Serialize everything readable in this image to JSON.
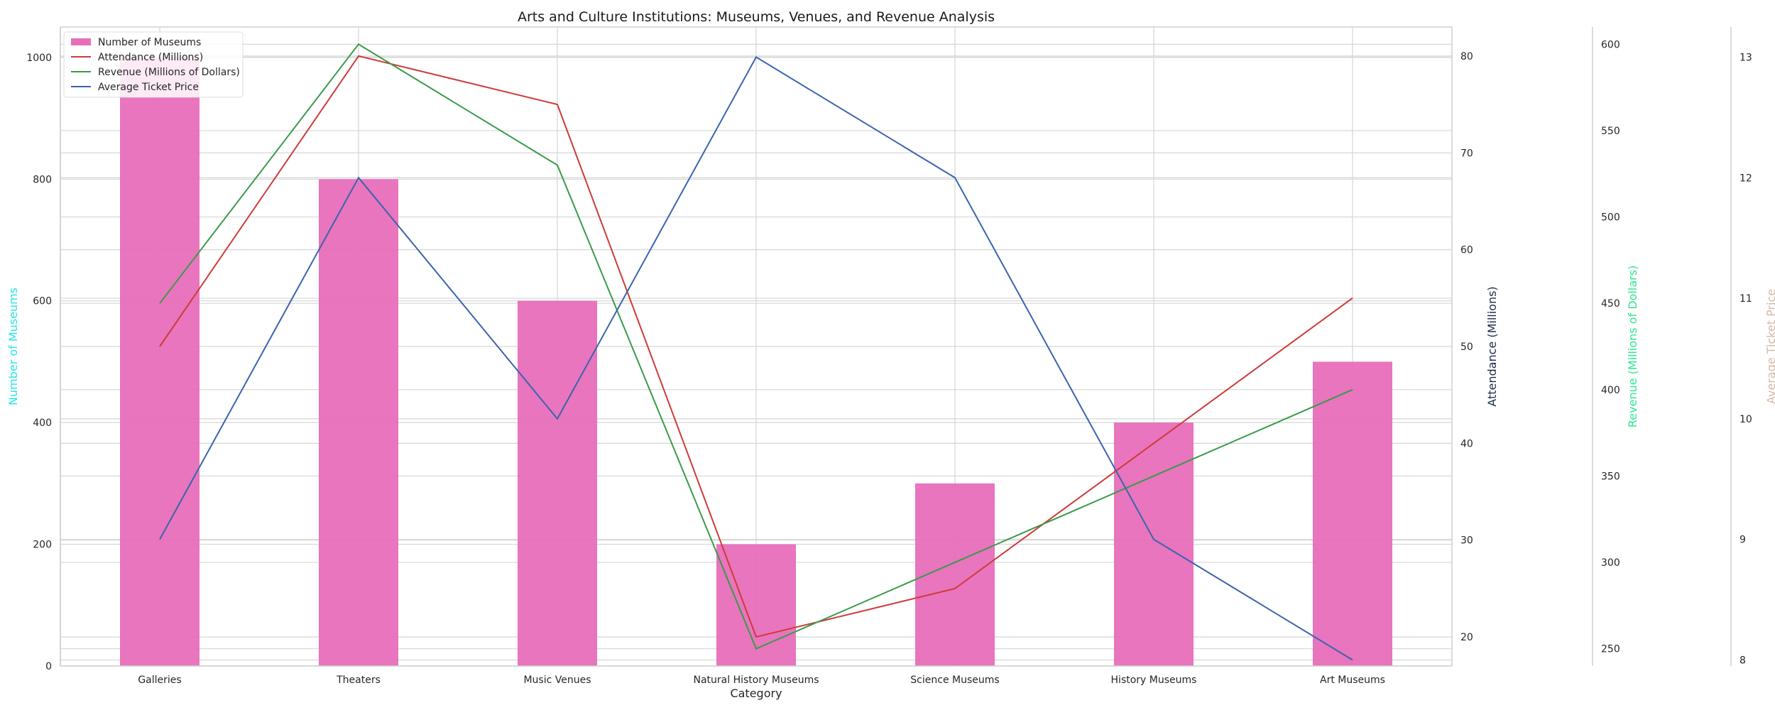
{
  "chart_data": {
    "type": "bar",
    "title": "Arts and Culture Institutions: Museums, Venues, and Revenue Analysis",
    "xlabel": "Category",
    "categories": [
      "Galleries",
      "Theaters",
      "Music Venues",
      "Natural History Museums",
      "Science Museums",
      "History Museums",
      "Art Museums"
    ],
    "grid": true,
    "legend_position": "top-left",
    "series": [
      {
        "name": "Number of Museums",
        "kind": "bar",
        "axis": "left",
        "color": "#e76eb9",
        "values": [
          1000,
          800,
          600,
          200,
          300,
          400,
          500
        ]
      },
      {
        "name": "Attendance (Millions)",
        "kind": "line",
        "axis": "attendance",
        "color": "#d03a3a",
        "values": [
          50,
          80,
          75,
          20,
          25,
          40,
          55
        ]
      },
      {
        "name": "Revenue (Millions of Dollars)",
        "kind": "line",
        "axis": "revenue",
        "color": "#3a9a4a",
        "values": [
          450,
          600,
          530,
          250,
          300,
          350,
          400
        ]
      },
      {
        "name": "Average Ticket Price",
        "kind": "line",
        "axis": "price",
        "color": "#3a64ae",
        "values": [
          9,
          12,
          10,
          13,
          12,
          9,
          8
        ]
      }
    ],
    "axes": {
      "left": {
        "label": "Number of Museums",
        "label_color": "#27e3e6",
        "range": [
          0,
          1050
        ],
        "ticks": [
          0,
          200,
          400,
          600,
          800,
          1000
        ]
      },
      "attendance": {
        "label": "Attendance (Millions)",
        "label_color": "#1b2a4a",
        "range": [
          17,
          83
        ],
        "ticks": [
          20,
          30,
          40,
          50,
          60,
          70,
          80
        ]
      },
      "revenue": {
        "label": "Revenue (Millions of Dollars)",
        "label_color": "#2ee78f",
        "range": [
          240,
          610
        ],
        "ticks": [
          250,
          300,
          350,
          400,
          450,
          500,
          550,
          600
        ]
      },
      "price": {
        "label": "Average Ticket Price",
        "label_color": "#d4b8a8",
        "range": [
          7.95,
          13.25
        ],
        "ticks": [
          8,
          9,
          10,
          11,
          12,
          13
        ]
      }
    }
  }
}
